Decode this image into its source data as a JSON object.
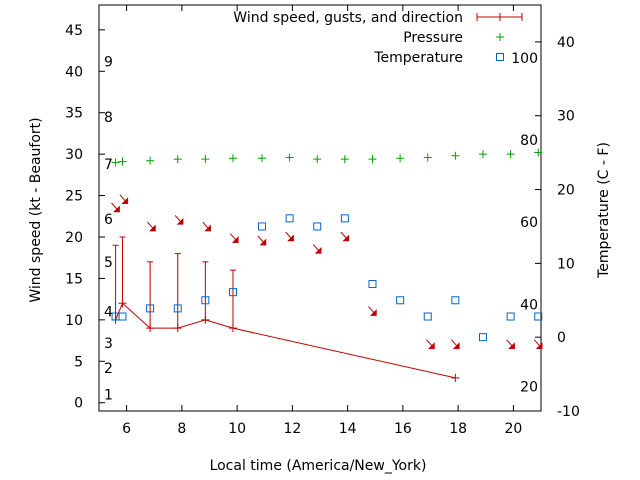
{
  "chart_data": {
    "type": "line",
    "title": "",
    "xlabel": "Local time (America/New_York)",
    "ylabel_left": "Wind speed (kt - Beaufort)",
    "ylabel_right": "Temperature (C - F)",
    "xlim": [
      5.0,
      21.0
    ],
    "ylim_left": [
      -1,
      48
    ],
    "ylim_right": [
      -10,
      45
    ],
    "x_ticks": [
      6,
      8,
      10,
      12,
      14,
      16,
      18,
      20
    ],
    "y_left_ticks": [
      0,
      5,
      10,
      15,
      20,
      25,
      30,
      35,
      40,
      45
    ],
    "y_right_ticks": [
      -10,
      0,
      10,
      20,
      30,
      40
    ],
    "beaufort_labels": [
      {
        "label": "1",
        "y": 1
      },
      {
        "label": "2",
        "y": 4.2
      },
      {
        "label": "3",
        "y": 7.2
      },
      {
        "label": "4",
        "y": 11
      },
      {
        "label": "5",
        "y": 17
      },
      {
        "label": "6",
        "y": 22.2
      },
      {
        "label": "7",
        "y": 28.8
      },
      {
        "label": "8",
        "y": 34.5
      },
      {
        "label": "9",
        "y": 41.2
      }
    ],
    "fahrenheit_labels": [
      {
        "label": "20",
        "temp": -6.7
      },
      {
        "label": "40",
        "temp": 4.4
      },
      {
        "label": "60",
        "temp": 15.6
      },
      {
        "label": "80",
        "temp": 26.7
      },
      {
        "label": "100",
        "temp": 37.8
      }
    ],
    "legend": [
      {
        "label": "Wind speed, gusts, and direction",
        "color": "#c00000",
        "marker": "line-plus"
      },
      {
        "label": "Pressure",
        "color": "#00a000",
        "marker": "plus"
      },
      {
        "label": "Temperature",
        "color": "#0066cc",
        "marker": "square"
      }
    ],
    "series": [
      {
        "name": "Wind speed, gusts, and direction",
        "color": "#c00000",
        "x": [
          5.6,
          5.85,
          6.85,
          7.85,
          8.85,
          9.85,
          17.9
        ],
        "values": [
          10,
          12,
          9,
          9,
          10,
          9,
          3
        ],
        "gusts": [
          19,
          20,
          17,
          18,
          17,
          16,
          null
        ]
      },
      {
        "name": "Pressure",
        "color": "#00a000",
        "x": [
          5.6,
          5.85,
          6.85,
          7.85,
          8.85,
          9.85,
          10.9,
          11.9,
          12.9,
          13.9,
          14.9,
          15.9,
          16.9,
          17.9,
          18.9,
          19.9,
          20.9
        ],
        "values": [
          29,
          29.1,
          29.2,
          29.4,
          29.4,
          29.5,
          29.5,
          29.6,
          29.4,
          29.4,
          29.4,
          29.5,
          29.6,
          29.8,
          30.0,
          30.0,
          30.2
        ]
      },
      {
        "name": "Temperature",
        "color": "#0066cc",
        "x": [
          5.6,
          5.85,
          6.85,
          7.85,
          8.85,
          9.85,
          10.9,
          11.9,
          12.9,
          13.9,
          14.9,
          15.9,
          16.9,
          17.9,
          18.9,
          19.9,
          20.9
        ],
        "values": [
          2.8,
          2.8,
          3.9,
          3.9,
          5,
          6.1,
          15,
          16.1,
          15,
          16.1,
          7.2,
          5,
          2.8,
          5,
          0,
          2.8,
          2.8
        ]
      }
    ],
    "wind_direction_arrows": [
      {
        "x": 5.6,
        "y": 23.5
      },
      {
        "x": 5.9,
        "y": 24.5
      },
      {
        "x": 6.9,
        "y": 21.2
      },
      {
        "x": 7.9,
        "y": 22.0
      },
      {
        "x": 8.9,
        "y": 21.2
      },
      {
        "x": 9.9,
        "y": 19.8
      },
      {
        "x": 10.9,
        "y": 19.5
      },
      {
        "x": 11.9,
        "y": 20.0
      },
      {
        "x": 12.9,
        "y": 18.5
      },
      {
        "x": 13.9,
        "y": 20.0
      },
      {
        "x": 14.9,
        "y": 11.0
      },
      {
        "x": 17.0,
        "y": 7.0
      },
      {
        "x": 17.9,
        "y": 7.0
      },
      {
        "x": 19.9,
        "y": 7.0
      },
      {
        "x": 20.9,
        "y": 7.0
      }
    ]
  }
}
